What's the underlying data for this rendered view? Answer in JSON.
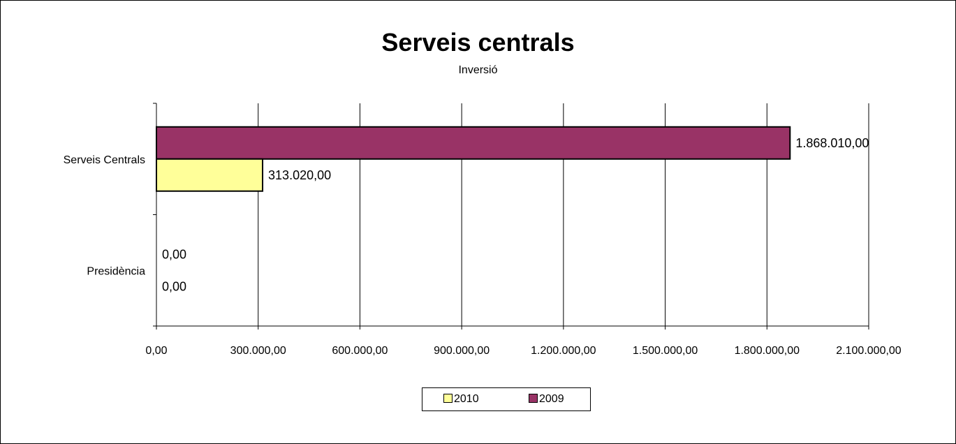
{
  "chart_data": {
    "type": "bar",
    "orientation": "horizontal",
    "title": "Serveis centrals",
    "subtitle": "Inversió",
    "categories": [
      "Serveis Centrals",
      "Presidència"
    ],
    "series": [
      {
        "name": "2009",
        "color": "#993366",
        "values": [
          1868010.0,
          0.0
        ],
        "labels": [
          "1.868.010,00",
          "0,00"
        ]
      },
      {
        "name": "2010",
        "color": "#FFFF99",
        "values": [
          313020.0,
          0.0
        ],
        "labels": [
          "313.020,00",
          "0,00"
        ]
      }
    ],
    "xlim": [
      0,
      2100000
    ],
    "x_ticks": [
      0,
      300000,
      600000,
      900000,
      1200000,
      1500000,
      1800000,
      2100000
    ],
    "x_tick_labels": [
      "0,00",
      "300.000,00",
      "600.000,00",
      "900.000,00",
      "1.200.000,00",
      "1.500.000,00",
      "1.800.000,00",
      "2.100.000,00"
    ],
    "grid": "vertical",
    "legend": {
      "position": "bottom-center",
      "items": [
        {
          "name": "2010",
          "color": "#FFFF99"
        },
        {
          "name": "2009",
          "color": "#993366"
        }
      ]
    }
  }
}
